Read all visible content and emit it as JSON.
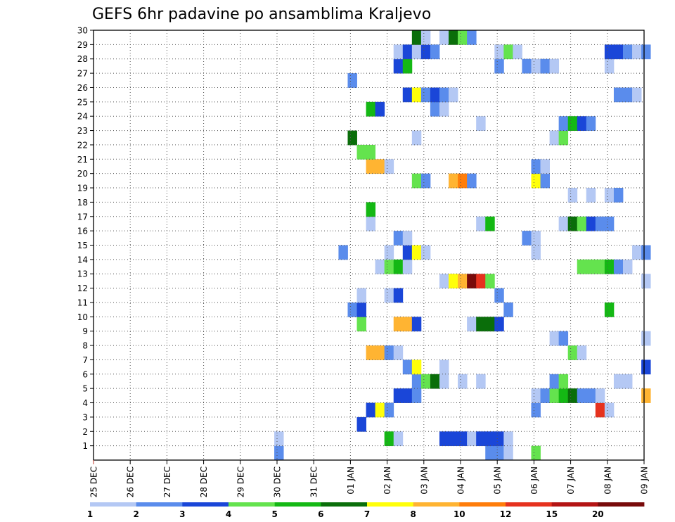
{
  "chart_data": {
    "type": "heatmap",
    "title": "GEFS 6hr padavine po ansamblima Kraljevo",
    "xlabel": "",
    "ylabel": "",
    "x_tick_labels": [
      "25 DEC",
      "26 DEC",
      "27 DEC",
      "28 DEC",
      "29 DEC",
      "30 DEC",
      "31 DEC",
      "01 JAN",
      "02 JAN",
      "03 JAN",
      "04 JAN",
      "05 JAN",
      "06 JAN",
      "07 JAN",
      "08 JAN",
      "09 JAN"
    ],
    "y_tick_labels": [
      "1",
      "2",
      "3",
      "4",
      "5",
      "6",
      "7",
      "8",
      "9",
      "10",
      "11",
      "12",
      "13",
      "14",
      "15",
      "16",
      "17",
      "18",
      "19",
      "20",
      "21",
      "22",
      "23",
      "24",
      "25",
      "26",
      "27",
      "28",
      "29",
      "30"
    ],
    "xlim": [
      0,
      60
    ],
    "ylim": [
      0,
      30
    ],
    "grid": true,
    "legend_labels": [
      "1",
      "2",
      "3",
      "4",
      "5",
      "6",
      "7",
      "8",
      "10",
      "12",
      "15",
      "20"
    ],
    "colors": [
      "#b4c8f4",
      "#5a8cec",
      "#1a46d8",
      "#64e34e",
      "#14b814",
      "#0a6e0a",
      "#ffff0a",
      "#ffb432",
      "#ff7d0a",
      "#e6321e",
      "#b41414",
      "#780a0a"
    ],
    "cells": [
      {
        "x": 42.7,
        "y": 0,
        "v": 1
      },
      {
        "x": 43.7,
        "y": 0,
        "v": 1
      },
      {
        "x": 44.7,
        "y": 0,
        "v": 0
      },
      {
        "x": 47.7,
        "y": 0,
        "v": 3
      },
      {
        "x": 19.7,
        "y": 0,
        "v": 1
      },
      {
        "x": 31.7,
        "y": 1,
        "v": 4
      },
      {
        "x": 32.7,
        "y": 1,
        "v": 0
      },
      {
        "x": 19.7,
        "y": 1,
        "v": 0
      },
      {
        "x": 37.7,
        "y": 1,
        "v": 2
      },
      {
        "x": 38.7,
        "y": 1,
        "v": 2
      },
      {
        "x": 39.7,
        "y": 1,
        "v": 2
      },
      {
        "x": 40.7,
        "y": 1,
        "v": 0
      },
      {
        "x": 41.7,
        "y": 1,
        "v": 2
      },
      {
        "x": 42.7,
        "y": 1,
        "v": 2
      },
      {
        "x": 43.7,
        "y": 1,
        "v": 2
      },
      {
        "x": 44.7,
        "y": 1,
        "v": 0
      },
      {
        "x": 28.7,
        "y": 2,
        "v": 2
      },
      {
        "x": 29.7,
        "y": 3,
        "v": 2
      },
      {
        "x": 30.7,
        "y": 3,
        "v": 6
      },
      {
        "x": 31.7,
        "y": 3,
        "v": 1
      },
      {
        "x": 47.7,
        "y": 3,
        "v": 1
      },
      {
        "x": 54.7,
        "y": 3,
        "v": 9
      },
      {
        "x": 55.7,
        "y": 3,
        "v": 0
      },
      {
        "x": 32.7,
        "y": 4,
        "v": 2
      },
      {
        "x": 33.7,
        "y": 4,
        "v": 2
      },
      {
        "x": 34.7,
        "y": 4,
        "v": 1
      },
      {
        "x": 47.7,
        "y": 4,
        "v": 0
      },
      {
        "x": 48.7,
        "y": 4,
        "v": 1
      },
      {
        "x": 49.7,
        "y": 4,
        "v": 3
      },
      {
        "x": 50.7,
        "y": 4,
        "v": 4
      },
      {
        "x": 51.7,
        "y": 4,
        "v": 5
      },
      {
        "x": 52.7,
        "y": 4,
        "v": 1
      },
      {
        "x": 53.7,
        "y": 4,
        "v": 1
      },
      {
        "x": 54.7,
        "y": 4,
        "v": 0
      },
      {
        "x": 59.7,
        "y": 4,
        "v": 7
      },
      {
        "x": 34.7,
        "y": 5,
        "v": 1
      },
      {
        "x": 35.7,
        "y": 5,
        "v": 3
      },
      {
        "x": 36.7,
        "y": 5,
        "v": 5
      },
      {
        "x": 37.7,
        "y": 5,
        "v": 0
      },
      {
        "x": 39.7,
        "y": 5,
        "v": 0
      },
      {
        "x": 41.7,
        "y": 5,
        "v": 0
      },
      {
        "x": 49.7,
        "y": 5,
        "v": 1
      },
      {
        "x": 50.7,
        "y": 5,
        "v": 3
      },
      {
        "x": 56.7,
        "y": 5,
        "v": 0
      },
      {
        "x": 57.7,
        "y": 5,
        "v": 0
      },
      {
        "x": 33.7,
        "y": 6,
        "v": 1
      },
      {
        "x": 34.7,
        "y": 6,
        "v": 6
      },
      {
        "x": 37.7,
        "y": 6,
        "v": 0
      },
      {
        "x": 59.7,
        "y": 6,
        "v": 2
      },
      {
        "x": 29.7,
        "y": 7,
        "v": 7
      },
      {
        "x": 30.7,
        "y": 7,
        "v": 7
      },
      {
        "x": 31.7,
        "y": 7,
        "v": 1
      },
      {
        "x": 32.7,
        "y": 7,
        "v": 0
      },
      {
        "x": 51.7,
        "y": 7,
        "v": 3
      },
      {
        "x": 52.7,
        "y": 7,
        "v": 0
      },
      {
        "x": 49.7,
        "y": 8,
        "v": 0
      },
      {
        "x": 50.7,
        "y": 8,
        "v": 1
      },
      {
        "x": 59.7,
        "y": 8,
        "v": 0
      },
      {
        "x": 28.7,
        "y": 9,
        "v": 3
      },
      {
        "x": 32.7,
        "y": 9,
        "v": 7
      },
      {
        "x": 33.7,
        "y": 9,
        "v": 7
      },
      {
        "x": 34.7,
        "y": 9,
        "v": 2
      },
      {
        "x": 40.7,
        "y": 9,
        "v": 0
      },
      {
        "x": 41.7,
        "y": 9,
        "v": 5
      },
      {
        "x": 42.7,
        "y": 9,
        "v": 5
      },
      {
        "x": 43.7,
        "y": 9,
        "v": 2
      },
      {
        "x": 27.7,
        "y": 10,
        "v": 1
      },
      {
        "x": 28.7,
        "y": 10,
        "v": 2
      },
      {
        "x": 44.7,
        "y": 10,
        "v": 1
      },
      {
        "x": 55.7,
        "y": 10,
        "v": 4
      },
      {
        "x": 28.7,
        "y": 11,
        "v": 0
      },
      {
        "x": 31.7,
        "y": 11,
        "v": 0
      },
      {
        "x": 32.7,
        "y": 11,
        "v": 2
      },
      {
        "x": 43.7,
        "y": 11,
        "v": 1
      },
      {
        "x": 37.7,
        "y": 12,
        "v": 0
      },
      {
        "x": 38.7,
        "y": 12,
        "v": 6
      },
      {
        "x": 39.7,
        "y": 12,
        "v": 7
      },
      {
        "x": 40.7,
        "y": 12,
        "v": 11
      },
      {
        "x": 41.7,
        "y": 12,
        "v": 9
      },
      {
        "x": 42.7,
        "y": 12,
        "v": 3
      },
      {
        "x": 59.7,
        "y": 12,
        "v": 0
      },
      {
        "x": 30.7,
        "y": 13,
        "v": 0
      },
      {
        "x": 31.7,
        "y": 13,
        "v": 3
      },
      {
        "x": 32.7,
        "y": 13,
        "v": 4
      },
      {
        "x": 33.7,
        "y": 13,
        "v": 0
      },
      {
        "x": 52.7,
        "y": 13,
        "v": 3
      },
      {
        "x": 53.7,
        "y": 13,
        "v": 3
      },
      {
        "x": 54.7,
        "y": 13,
        "v": 3
      },
      {
        "x": 55.7,
        "y": 13,
        "v": 4
      },
      {
        "x": 56.7,
        "y": 13,
        "v": 1
      },
      {
        "x": 57.7,
        "y": 13,
        "v": 0
      },
      {
        "x": 31.7,
        "y": 14,
        "v": 0
      },
      {
        "x": 33.7,
        "y": 14,
        "v": 2
      },
      {
        "x": 34.7,
        "y": 14,
        "v": 6
      },
      {
        "x": 35.7,
        "y": 14,
        "v": 0
      },
      {
        "x": 26.7,
        "y": 14,
        "v": 1
      },
      {
        "x": 47.7,
        "y": 14,
        "v": 0
      },
      {
        "x": 58.7,
        "y": 14,
        "v": 0
      },
      {
        "x": 59.7,
        "y": 14,
        "v": 1
      },
      {
        "x": 32.7,
        "y": 15,
        "v": 1
      },
      {
        "x": 33.7,
        "y": 15,
        "v": 0
      },
      {
        "x": 46.7,
        "y": 15,
        "v": 1
      },
      {
        "x": 47.7,
        "y": 15,
        "v": 0
      },
      {
        "x": 29.7,
        "y": 16,
        "v": 0
      },
      {
        "x": 41.7,
        "y": 16,
        "v": 0
      },
      {
        "x": 42.7,
        "y": 16,
        "v": 4
      },
      {
        "x": 50.7,
        "y": 16,
        "v": 0
      },
      {
        "x": 51.7,
        "y": 16,
        "v": 5
      },
      {
        "x": 52.7,
        "y": 16,
        "v": 3
      },
      {
        "x": 53.7,
        "y": 16,
        "v": 2
      },
      {
        "x": 54.7,
        "y": 16,
        "v": 1
      },
      {
        "x": 55.7,
        "y": 16,
        "v": 1
      },
      {
        "x": 29.7,
        "y": 17,
        "v": 4
      },
      {
        "x": 51.7,
        "y": 18,
        "v": 0
      },
      {
        "x": 53.7,
        "y": 18,
        "v": 0
      },
      {
        "x": 55.7,
        "y": 18,
        "v": 0
      },
      {
        "x": 56.7,
        "y": 18,
        "v": 1
      },
      {
        "x": 34.7,
        "y": 19,
        "v": 3
      },
      {
        "x": 35.7,
        "y": 19,
        "v": 1
      },
      {
        "x": 38.7,
        "y": 19,
        "v": 7
      },
      {
        "x": 39.7,
        "y": 19,
        "v": 8
      },
      {
        "x": 40.7,
        "y": 19,
        "v": 1
      },
      {
        "x": 47.7,
        "y": 19,
        "v": 6
      },
      {
        "x": 48.7,
        "y": 19,
        "v": 1
      },
      {
        "x": 29.7,
        "y": 20,
        "v": 7
      },
      {
        "x": 30.7,
        "y": 20,
        "v": 7
      },
      {
        "x": 31.7,
        "y": 20,
        "v": 0
      },
      {
        "x": 47.7,
        "y": 20,
        "v": 1
      },
      {
        "x": 48.7,
        "y": 20,
        "v": 0
      },
      {
        "x": 28.7,
        "y": 21,
        "v": 3
      },
      {
        "x": 29.7,
        "y": 21,
        "v": 3
      },
      {
        "x": 27.7,
        "y": 22,
        "v": 5
      },
      {
        "x": 34.7,
        "y": 22,
        "v": 0
      },
      {
        "x": 49.7,
        "y": 22,
        "v": 0
      },
      {
        "x": 50.7,
        "y": 22,
        "v": 3
      },
      {
        "x": 41.7,
        "y": 23,
        "v": 0
      },
      {
        "x": 50.7,
        "y": 23,
        "v": 1
      },
      {
        "x": 51.7,
        "y": 23,
        "v": 4
      },
      {
        "x": 52.7,
        "y": 23,
        "v": 2
      },
      {
        "x": 53.7,
        "y": 23,
        "v": 1
      },
      {
        "x": 29.7,
        "y": 24,
        "v": 4
      },
      {
        "x": 30.7,
        "y": 24,
        "v": 2
      },
      {
        "x": 36.7,
        "y": 24,
        "v": 1
      },
      {
        "x": 37.7,
        "y": 24,
        "v": 0
      },
      {
        "x": 33.7,
        "y": 25,
        "v": 2
      },
      {
        "x": 34.7,
        "y": 25,
        "v": 6
      },
      {
        "x": 35.7,
        "y": 25,
        "v": 1
      },
      {
        "x": 36.7,
        "y": 25,
        "v": 2
      },
      {
        "x": 37.7,
        "y": 25,
        "v": 1
      },
      {
        "x": 38.7,
        "y": 25,
        "v": 0
      },
      {
        "x": 56.7,
        "y": 25,
        "v": 1
      },
      {
        "x": 57.7,
        "y": 25,
        "v": 1
      },
      {
        "x": 58.7,
        "y": 25,
        "v": 0
      },
      {
        "x": 27.7,
        "y": 26,
        "v": 1
      },
      {
        "x": 32.7,
        "y": 27,
        "v": 2
      },
      {
        "x": 33.7,
        "y": 27,
        "v": 4
      },
      {
        "x": 43.7,
        "y": 27,
        "v": 1
      },
      {
        "x": 46.7,
        "y": 27,
        "v": 1
      },
      {
        "x": 47.7,
        "y": 27,
        "v": 0
      },
      {
        "x": 48.7,
        "y": 27,
        "v": 1
      },
      {
        "x": 49.7,
        "y": 27,
        "v": 0
      },
      {
        "x": 55.7,
        "y": 27,
        "v": 0
      },
      {
        "x": 32.7,
        "y": 28,
        "v": 0
      },
      {
        "x": 33.7,
        "y": 28,
        "v": 2
      },
      {
        "x": 34.7,
        "y": 28,
        "v": 0
      },
      {
        "x": 35.7,
        "y": 28,
        "v": 2
      },
      {
        "x": 36.7,
        "y": 28,
        "v": 1
      },
      {
        "x": 43.7,
        "y": 28,
        "v": 0
      },
      {
        "x": 44.7,
        "y": 28,
        "v": 3
      },
      {
        "x": 45.7,
        "y": 28,
        "v": 0
      },
      {
        "x": 55.7,
        "y": 28,
        "v": 2
      },
      {
        "x": 56.7,
        "y": 28,
        "v": 2
      },
      {
        "x": 57.7,
        "y": 28,
        "v": 1
      },
      {
        "x": 58.7,
        "y": 28,
        "v": 0
      },
      {
        "x": 59.7,
        "y": 28,
        "v": 1
      },
      {
        "x": 34.7,
        "y": 29,
        "v": 5
      },
      {
        "x": 35.7,
        "y": 29,
        "v": 0
      },
      {
        "x": 37.7,
        "y": 29,
        "v": 0
      },
      {
        "x": 38.7,
        "y": 29,
        "v": 5
      },
      {
        "x": 39.7,
        "y": 29,
        "v": 3
      },
      {
        "x": 40.7,
        "y": 29,
        "v": 1
      }
    ]
  }
}
